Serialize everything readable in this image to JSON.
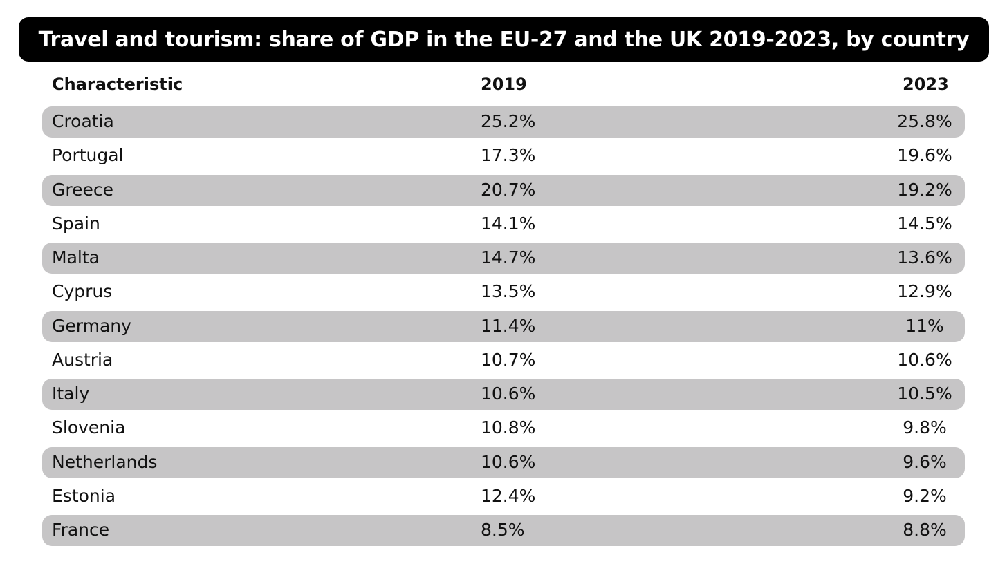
{
  "chart_data": {
    "type": "table",
    "title": "Travel and tourism: share of GDP in the EU-27 and the UK 2019-2023, by country",
    "columns": [
      "Characteristic",
      "2019",
      "2023"
    ],
    "rows": [
      {
        "name": "Croatia",
        "v2019": "25.2%",
        "v2023": "25.8%"
      },
      {
        "name": "Portugal",
        "v2019": "17.3%",
        "v2023": "19.6%"
      },
      {
        "name": "Greece",
        "v2019": "20.7%",
        "v2023": "19.2%"
      },
      {
        "name": "Spain",
        "v2019": "14.1%",
        "v2023": "14.5%"
      },
      {
        "name": "Malta",
        "v2019": "14.7%",
        "v2023": "13.6%"
      },
      {
        "name": "Cyprus",
        "v2019": "13.5%",
        "v2023": "12.9%"
      },
      {
        "name": "Germany",
        "v2019": "11.4%",
        "v2023": "11%"
      },
      {
        "name": "Austria",
        "v2019": "10.7%",
        "v2023": "10.6%"
      },
      {
        "name": "Italy",
        "v2019": "10.6%",
        "v2023": "10.5%"
      },
      {
        "name": "Slovenia",
        "v2019": "10.8%",
        "v2023": "9.8%"
      },
      {
        "name": "Netherlands",
        "v2019": "10.6%",
        "v2023": "9.6%"
      },
      {
        "name": "Estonia",
        "v2019": "12.4%",
        "v2023": "9.2%"
      },
      {
        "name": "France",
        "v2019": "8.5%",
        "v2023": "8.8%"
      }
    ]
  },
  "colors": {
    "title_bg": "#000000",
    "title_text": "#ffffff",
    "stripe": "#c6c5c6",
    "text": "#111111"
  }
}
